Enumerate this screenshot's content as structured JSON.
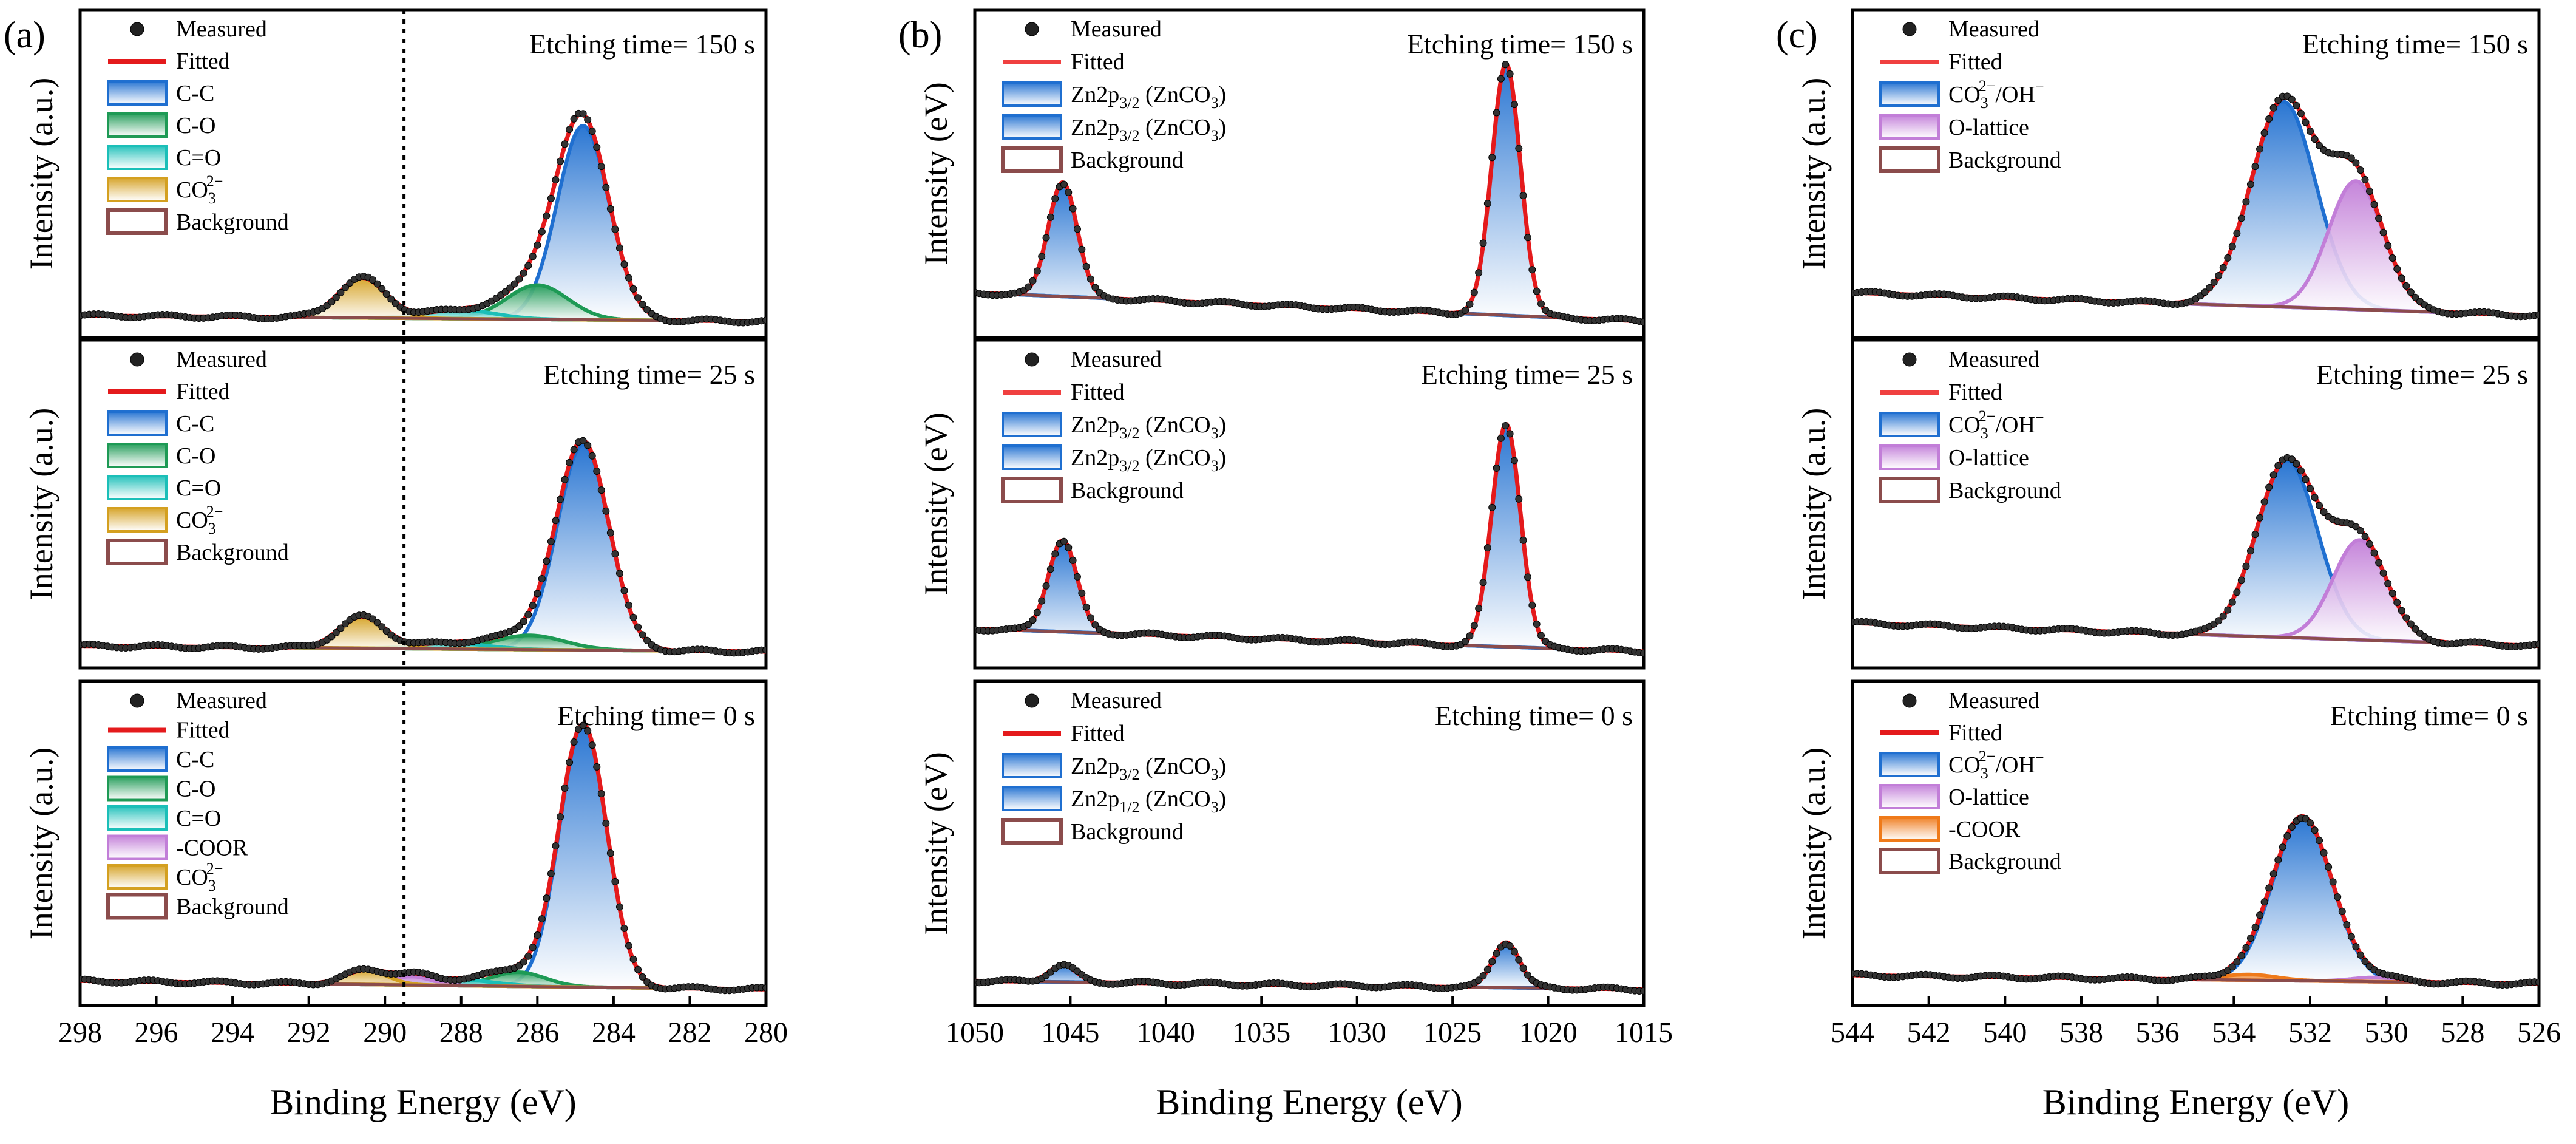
{
  "chart_data": [
    {
      "type": "line",
      "panel_label": "(a)",
      "xlabel": "Binding Energy (eV)",
      "xlim": [
        298,
        280
      ],
      "xticks": [
        "298",
        "296",
        "294",
        "292",
        "290",
        "288",
        "286",
        "284",
        "282",
        "280"
      ],
      "xtick_values": [
        298,
        296,
        294,
        292,
        290,
        288,
        286,
        284,
        282,
        280
      ],
      "reference_line_x": 289.5,
      "subplots": [
        {
          "etching": "Etching time= 150 s",
          "ylabel": "Intensity (a.u.)",
          "legend": [
            {
              "label": "Measured",
              "kind": "dot"
            },
            {
              "label": "Fitted",
              "kind": "line",
              "color": "#e41a1c"
            },
            {
              "label": "C-C",
              "kind": "fill",
              "color": "#1f6fd0"
            },
            {
              "label": "C-O",
              "kind": "fill",
              "color": "#1e9a55"
            },
            {
              "label": "C=O",
              "kind": "fill",
              "color": "#1bbfb8"
            },
            {
              "label": "CO",
              "sub": "3",
              "sup": "2−",
              "kind": "fill",
              "color": "#d4a020"
            },
            {
              "label": "Background",
              "kind": "box",
              "color": "#8b4c4c"
            }
          ],
          "peaks": [
            {
              "name": "C-C",
              "center": 284.8,
              "sigma": 0.68,
              "amp": 0.68,
              "color": "#1f6fd0"
            },
            {
              "name": "C-O",
              "center": 286.0,
              "sigma": 0.8,
              "amp": 0.12,
              "color": "#1e9a55"
            },
            {
              "name": "C=O",
              "center": 288.0,
              "sigma": 0.9,
              "amp": 0.03,
              "color": "#1bbfb8"
            },
            {
              "name": "CO3",
              "center": 290.6,
              "sigma": 0.62,
              "amp": 0.14,
              "color": "#d4a020"
            }
          ],
          "background": {
            "start": 0.02,
            "end": 0.0
          },
          "ymax": 1.0
        },
        {
          "etching": "Etching time= 25 s",
          "ylabel": "Intensity (a.u.)",
          "legend": [
            {
              "label": "Measured",
              "kind": "dot"
            },
            {
              "label": "Fitted",
              "kind": "line",
              "color": "#e41a1c"
            },
            {
              "label": "C-C",
              "kind": "fill",
              "color": "#1f6fd0"
            },
            {
              "label": "C-O",
              "kind": "fill",
              "color": "#1e9a55"
            },
            {
              "label": "C=O",
              "kind": "fill",
              "color": "#1bbfb8"
            },
            {
              "label": "CO",
              "sub": "3",
              "sup": "2−",
              "kind": "fill",
              "color": "#d4a020"
            },
            {
              "label": "Background",
              "kind": "box",
              "color": "#8b4c4c"
            }
          ],
          "peaks": [
            {
              "name": "C-C",
              "center": 284.8,
              "sigma": 0.68,
              "amp": 0.72,
              "color": "#1f6fd0"
            },
            {
              "name": "C-O",
              "center": 286.2,
              "sigma": 0.9,
              "amp": 0.05,
              "color": "#1e9a55"
            },
            {
              "name": "C=O",
              "center": 288.2,
              "sigma": 0.9,
              "amp": 0.02,
              "color": "#1bbfb8"
            },
            {
              "name": "CO3",
              "center": 290.6,
              "sigma": 0.6,
              "amp": 0.11,
              "color": "#d4a020"
            }
          ],
          "background": {
            "start": 0.02,
            "end": 0.0
          },
          "ymax": 1.0
        },
        {
          "etching": "Etching time= 0 s",
          "ylabel": "Intensity (a.u.)",
          "legend": [
            {
              "label": "Measured",
              "kind": "dot"
            },
            {
              "label": "Fitted",
              "kind": "line",
              "color": "#e41a1c"
            },
            {
              "label": "C-C",
              "kind": "fill",
              "color": "#1f6fd0"
            },
            {
              "label": "C-O",
              "kind": "fill",
              "color": "#1e9a55"
            },
            {
              "label": "C=O",
              "kind": "fill",
              "color": "#1bbfb8"
            },
            {
              "label": "-COOR",
              "kind": "fill",
              "color": "#c27ed8"
            },
            {
              "label": "CO",
              "sub": "3",
              "sup": "2−",
              "kind": "fill",
              "color": "#d4a020"
            },
            {
              "label": "Background",
              "kind": "box",
              "color": "#8b4c4c"
            }
          ],
          "peaks": [
            {
              "name": "C-C",
              "center": 284.8,
              "sigma": 0.62,
              "amp": 0.93,
              "color": "#1f6fd0"
            },
            {
              "name": "C-O",
              "center": 286.5,
              "sigma": 0.7,
              "amp": 0.05,
              "color": "#1e9a55"
            },
            {
              "name": "C=O",
              "center": 288.0,
              "sigma": 0.9,
              "amp": 0.02,
              "color": "#1bbfb8"
            },
            {
              "name": "-COOR",
              "center": 289.3,
              "sigma": 0.5,
              "amp": 0.03,
              "color": "#c27ed8"
            },
            {
              "name": "CO3",
              "center": 290.5,
              "sigma": 0.55,
              "amp": 0.05,
              "color": "#d4a020"
            }
          ],
          "background": {
            "start": 0.03,
            "end": 0.0
          },
          "ymax": 1.0
        }
      ]
    },
    {
      "type": "line",
      "panel_label": "(b)",
      "xlabel": "Binding Energy (eV)",
      "xlim": [
        1050,
        1015
      ],
      "xticks": [
        "1050",
        "1045",
        "1040",
        "1035",
        "1030",
        "1025",
        "1020",
        "1015"
      ],
      "xtick_values": [
        1050,
        1045,
        1040,
        1035,
        1030,
        1025,
        1020,
        1015
      ],
      "subplots": [
        {
          "etching": "Etching time= 150 s",
          "ylabel": "Intensity (eV)",
          "legend": [
            {
              "label": "Measured",
              "kind": "dot"
            },
            {
              "label": "Fitted",
              "kind": "line",
              "color": "#f04040"
            },
            {
              "label": "Zn2p",
              "sub": "3/2",
              "after": " (ZnCO",
              "sub2": "3",
              "after2": ")",
              "kind": "fill",
              "color": "#1f6fd0"
            },
            {
              "label": "Zn2p",
              "sub": "3/2",
              "after": " (ZnCO",
              "sub2": "3",
              "after2": ")",
              "kind": "fill",
              "color": "#1f6fd0"
            },
            {
              "label": "Background",
              "kind": "box",
              "color": "#8b4c4c"
            }
          ],
          "peaks": [
            {
              "name": "Zn2p1/2",
              "center": 1045.4,
              "sigma": 0.75,
              "amp": 0.4,
              "color": "#1f6fd0"
            },
            {
              "name": "Zn2p3/2",
              "center": 1022.2,
              "sigma": 0.75,
              "amp": 0.88,
              "color": "#1f6fd0"
            }
          ],
          "background": {
            "start": 0.1,
            "end": 0.0
          },
          "ymax": 1.0
        },
        {
          "etching": "Etching time= 25 s",
          "ylabel": "Intensity (eV)",
          "legend": [
            {
              "label": "Measured",
              "kind": "dot"
            },
            {
              "label": "Fitted",
              "kind": "line",
              "color": "#f04040"
            },
            {
              "label": "Zn2p",
              "sub": "3/2",
              "after": " (ZnCO",
              "sub2": "3",
              "after2": ")",
              "kind": "fill",
              "color": "#1f6fd0"
            },
            {
              "label": "Zn2p",
              "sub": "3/2",
              "after": " (ZnCO",
              "sub2": "3",
              "after2": ")",
              "kind": "fill",
              "color": "#1f6fd0"
            },
            {
              "label": "Background",
              "kind": "box",
              "color": "#8b4c4c"
            }
          ],
          "peaks": [
            {
              "name": "Zn2p1/2",
              "center": 1045.4,
              "sigma": 0.75,
              "amp": 0.32,
              "color": "#1f6fd0"
            },
            {
              "name": "Zn2p3/2",
              "center": 1022.2,
              "sigma": 0.75,
              "amp": 0.78,
              "color": "#1f6fd0"
            }
          ],
          "background": {
            "start": 0.08,
            "end": 0.0
          },
          "ymax": 1.0
        },
        {
          "etching": "Etching time= 0 s",
          "ylabel": "Intensity (eV)",
          "legend": [
            {
              "label": "Measured",
              "kind": "dot"
            },
            {
              "label": "Fitted",
              "kind": "line",
              "color": "#e41a1c"
            },
            {
              "label": "Zn2p",
              "sub": "3/2",
              "after": " (ZnCO",
              "sub2": "3",
              "after2": ")",
              "kind": "fill",
              "color": "#1f6fd0"
            },
            {
              "label": "Zn2p",
              "sub": "1/2",
              "after": " (ZnCO",
              "sub2": "3",
              "after2": ")",
              "kind": "fill",
              "color": "#1f6fd0"
            },
            {
              "label": "Background",
              "kind": "box",
              "color": "#8b4c4c"
            }
          ],
          "peaks": [
            {
              "name": "Zn2p1/2",
              "center": 1045.4,
              "sigma": 0.7,
              "amp": 0.06,
              "color": "#1f6fd0"
            },
            {
              "name": "Zn2p3/2",
              "center": 1022.2,
              "sigma": 0.7,
              "amp": 0.16,
              "color": "#1f6fd0"
            }
          ],
          "background": {
            "start": 0.03,
            "end": 0.0
          },
          "ymax": 1.0
        }
      ]
    },
    {
      "type": "line",
      "panel_label": "(c)",
      "xlabel": "Binding Energy (eV)",
      "xlim": [
        544,
        526
      ],
      "xticks": [
        "544",
        "542",
        "540",
        "538",
        "536",
        "534",
        "532",
        "530",
        "528",
        "526"
      ],
      "xtick_values": [
        544,
        542,
        540,
        538,
        536,
        534,
        532,
        530,
        528,
        526
      ],
      "subplots": [
        {
          "etching": "Etching time= 150 s",
          "ylabel": "Intensity (a.u.)",
          "legend": [
            {
              "label": "Measured",
              "kind": "dot"
            },
            {
              "label": "Fitted",
              "kind": "line",
              "color": "#f04040"
            },
            {
              "label": "CO",
              "sub": "3",
              "sup": "2−",
              "after": "/OH",
              "sup2": "−",
              "kind": "fill",
              "color": "#1f6fd0"
            },
            {
              "label": "O-lattice",
              "kind": "fill",
              "color": "#c27ed8"
            },
            {
              "label": "Background",
              "kind": "box",
              "color": "#8b4c4c"
            }
          ],
          "peaks": [
            {
              "name": "CO3/OH",
              "center": 532.7,
              "sigma": 0.85,
              "amp": 0.72,
              "color": "#1f6fd0"
            },
            {
              "name": "O-lattice",
              "center": 530.8,
              "sigma": 0.72,
              "amp": 0.45,
              "color": "#c27ed8"
            }
          ],
          "background": {
            "start": 0.1,
            "end": 0.02
          },
          "ymax": 1.0
        },
        {
          "etching": "Etching time= 25 s",
          "ylabel": "Intensity (a.u.)",
          "legend": [
            {
              "label": "Measured",
              "kind": "dot"
            },
            {
              "label": "Fitted",
              "kind": "line",
              "color": "#f04040"
            },
            {
              "label": "CO",
              "sub": "3",
              "sup": "2−",
              "after": "/OH",
              "sup2": "−",
              "kind": "fill",
              "color": "#1f6fd0"
            },
            {
              "label": "O-lattice",
              "kind": "fill",
              "color": "#c27ed8"
            },
            {
              "label": "Background",
              "kind": "box",
              "color": "#8b4c4c"
            }
          ],
          "peaks": [
            {
              "name": "CO3/OH",
              "center": 532.6,
              "sigma": 0.8,
              "amp": 0.62,
              "color": "#1f6fd0"
            },
            {
              "name": "O-lattice",
              "center": 530.7,
              "sigma": 0.7,
              "amp": 0.35,
              "color": "#c27ed8"
            }
          ],
          "background": {
            "start": 0.1,
            "end": 0.02
          },
          "ymax": 1.0
        },
        {
          "etching": "Etching time= 0 s",
          "ylabel": "Intensity (a.u.)",
          "legend": [
            {
              "label": "Measured",
              "kind": "dot"
            },
            {
              "label": "Fitted",
              "kind": "line",
              "color": "#e41a1c"
            },
            {
              "label": "CO",
              "sub": "3",
              "sup": "2−",
              "after": "/OH",
              "sup2": "−",
              "kind": "fill",
              "color": "#1f6fd0"
            },
            {
              "label": "O-lattice",
              "kind": "fill",
              "color": "#c27ed8"
            },
            {
              "label": "-COOR",
              "kind": "fill",
              "color": "#ef7a1a"
            },
            {
              "label": "Background",
              "kind": "box",
              "color": "#8b4c4c"
            }
          ],
          "peaks": [
            {
              "name": "CO3/OH",
              "center": 532.2,
              "sigma": 0.78,
              "amp": 0.58,
              "color": "#1f6fd0"
            },
            {
              "name": "O-lattice",
              "center": 530.3,
              "sigma": 0.6,
              "amp": 0.015,
              "color": "#c27ed8"
            },
            {
              "name": "-COOR",
              "center": 533.6,
              "sigma": 0.7,
              "amp": 0.02,
              "color": "#ef7a1a"
            }
          ],
          "background": {
            "start": 0.05,
            "end": 0.02
          },
          "ymax": 1.0
        }
      ]
    }
  ]
}
